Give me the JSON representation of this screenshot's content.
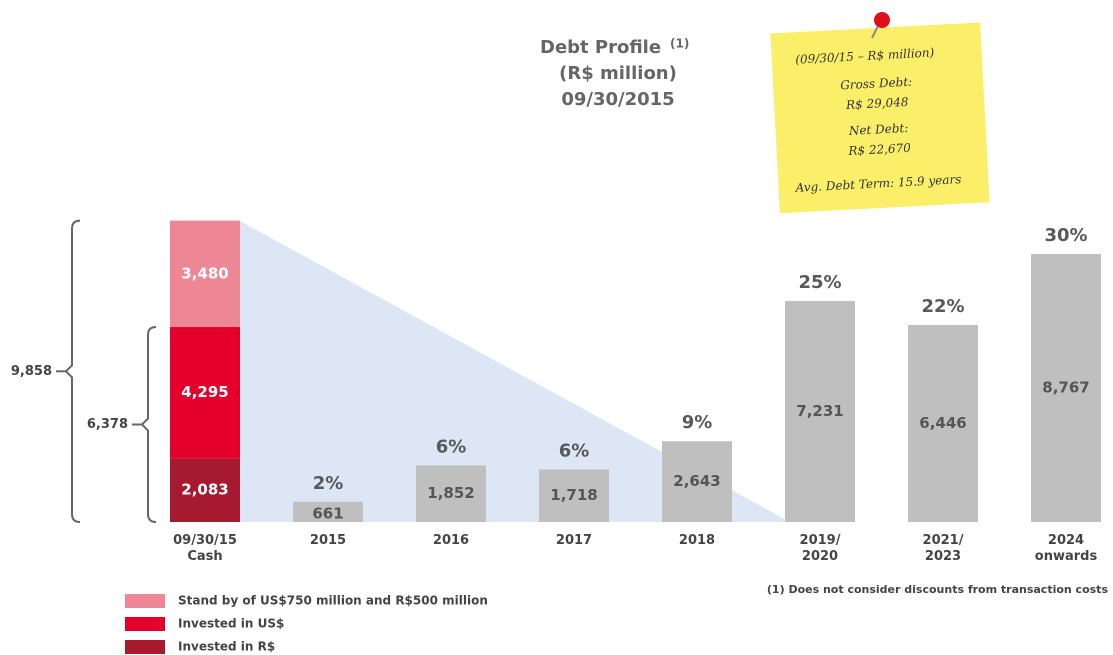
{
  "chart_data": {
    "type": "stacked_bar",
    "title": "Debt Profile",
    "title_note": "(1)",
    "subtitle": "(R$ million)",
    "date": "09/30/2015",
    "categories": [
      "09/30/15\nCash",
      "2015",
      "2016",
      "2017",
      "2018",
      "2019/\n2020",
      "2021/\n2023",
      "2024\nonwards"
    ],
    "series": [
      {
        "name": "Invested in R$",
        "color": "#a6192e",
        "values": [
          2083,
          null,
          null,
          null,
          null,
          null,
          null,
          null
        ],
        "value_labels": [
          "2,083",
          null,
          null,
          null,
          null,
          null,
          null,
          null
        ]
      },
      {
        "name": "Invested in US$",
        "color": "#e4002b",
        "values": [
          4295,
          null,
          null,
          null,
          null,
          null,
          null,
          null
        ],
        "value_labels": [
          "4,295",
          null,
          null,
          null,
          null,
          null,
          null,
          null
        ]
      },
      {
        "name": "Stand by of US$750 million and R$500 million",
        "color": "#ee8795",
        "values": [
          3480,
          null,
          null,
          null,
          null,
          null,
          null,
          null
        ],
        "value_labels": [
          "3,480",
          null,
          null,
          null,
          null,
          null,
          null,
          null
        ]
      },
      {
        "color": "#bfbfbf",
        "values": [
          null,
          661,
          1852,
          1718,
          2643,
          7231,
          6446,
          8767
        ],
        "value_labels": [
          null,
          "661",
          "1,852",
          "1,718",
          "2,643",
          "7,231",
          "6,446",
          "8,767"
        ],
        "percent_labels": [
          null,
          "2%",
          "6%",
          "6%",
          "9%",
          "25%",
          "22%",
          "30%"
        ]
      }
    ],
    "brackets": [
      {
        "value": 9858,
        "label": "9,858"
      },
      {
        "value": 6378,
        "label": "6,378"
      }
    ],
    "note": [
      "(09/30/15 – R$ million)",
      "Gross Debt:",
      "R$ 29,048",
      "Net Debt:",
      "R$ 22,670",
      "Avg. Debt Term: 15.9 years"
    ],
    "footnote": "(1) Does not consider discounts from transaction costs"
  }
}
